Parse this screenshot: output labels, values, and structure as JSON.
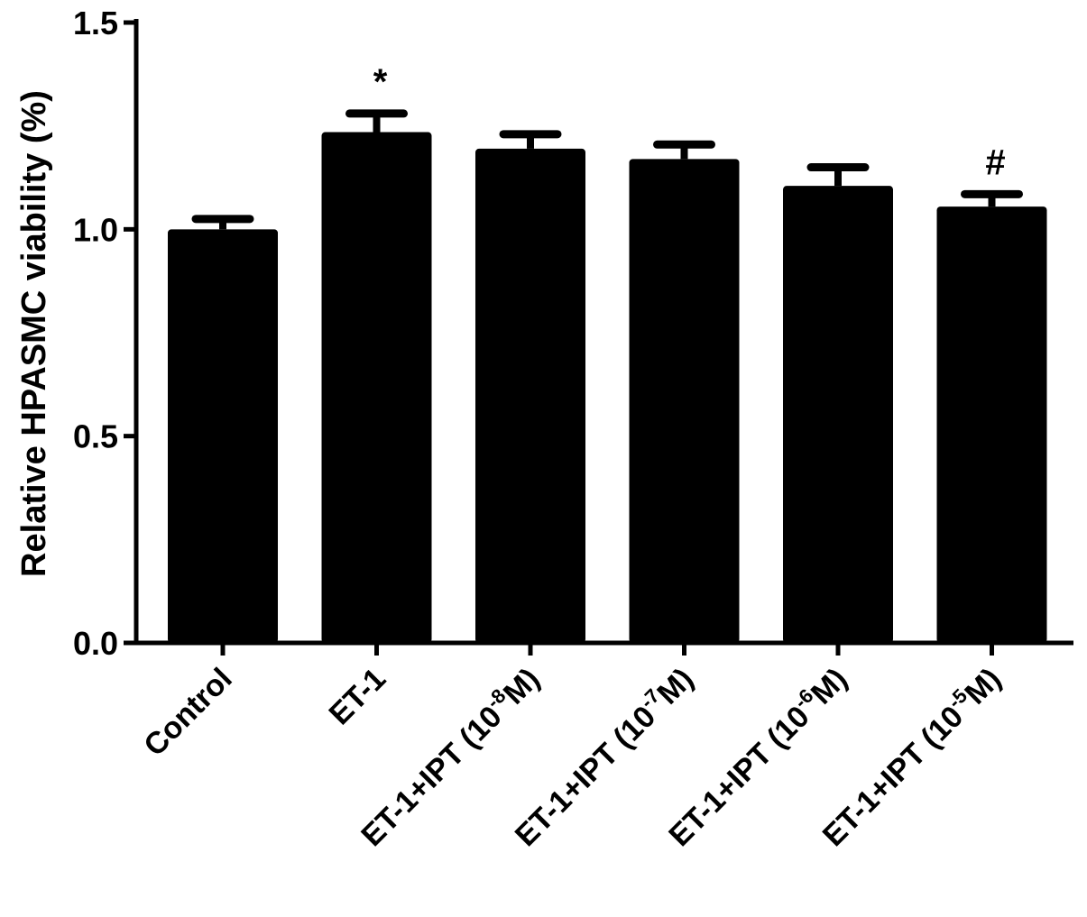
{
  "chart_data": {
    "type": "bar",
    "ylabel": "Relative HPASMC viability (%)",
    "xlabel": "",
    "ylim": [
      0,
      1.5
    ],
    "yticks": [
      "0.0",
      "0.5",
      "1.0",
      "1.5"
    ],
    "categories": [
      {
        "main": "Control",
        "pre": "",
        "sup": "",
        "post": ""
      },
      {
        "main": "ET-1",
        "pre": "",
        "sup": "",
        "post": ""
      },
      {
        "main": "",
        "pre": "ET-1+IPT (10",
        "sup": "-8",
        "post": "M)"
      },
      {
        "main": "",
        "pre": "ET-1+IPT (10",
        "sup": "-7",
        "post": "M)"
      },
      {
        "main": "",
        "pre": "ET-1+IPT (10",
        "sup": "-6",
        "post": "M)"
      },
      {
        "main": "",
        "pre": "ET-1+IPT (10",
        "sup": "-5",
        "post": "M)"
      }
    ],
    "values": [
      1.0,
      1.235,
      1.195,
      1.17,
      1.105,
      1.055
    ],
    "errors": [
      0.025,
      0.045,
      0.035,
      0.035,
      0.045,
      0.03
    ],
    "annotations": [
      "",
      "*",
      "",
      "",
      "",
      "#"
    ],
    "grid": false,
    "bar_color": "#000000"
  }
}
